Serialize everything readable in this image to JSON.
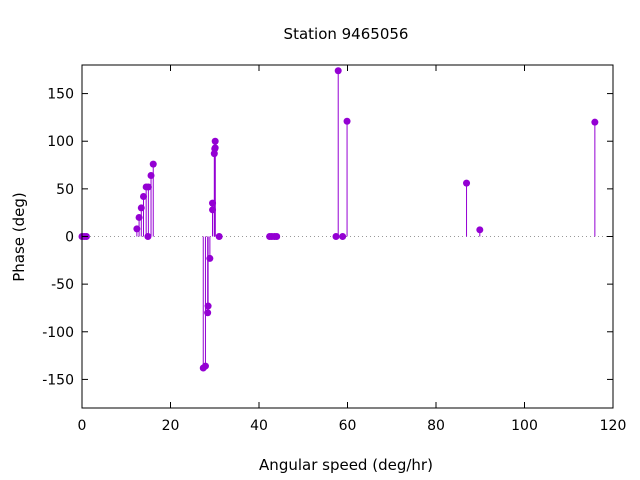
{
  "chart_data": {
    "type": "scatter",
    "style": "impulses-with-points",
    "title": "Station 9465056",
    "xlabel": "Angular speed (deg/hr)",
    "ylabel": "Phase (deg)",
    "xlim": [
      0,
      120
    ],
    "ylim": [
      -180,
      180
    ],
    "xticks": [
      0,
      20,
      40,
      60,
      80,
      100,
      120
    ],
    "yticks": [
      -150,
      -100,
      -50,
      0,
      50,
      100,
      150
    ],
    "grid": false,
    "zero_line": "dotted",
    "color": "#9400d3",
    "series": [
      {
        "points": [
          [
            0.0,
            0
          ],
          [
            0.5,
            0
          ],
          [
            1.0,
            0
          ],
          [
            12.4,
            8
          ],
          [
            12.9,
            20
          ],
          [
            13.4,
            30
          ],
          [
            13.9,
            42
          ],
          [
            14.5,
            52
          ],
          [
            14.9,
            0
          ],
          [
            15.0,
            52
          ],
          [
            15.6,
            64
          ],
          [
            16.1,
            76
          ],
          [
            27.4,
            -138
          ],
          [
            27.9,
            -136
          ],
          [
            28.4,
            -80
          ],
          [
            28.5,
            -73
          ],
          [
            28.9,
            -23
          ],
          [
            29.5,
            28
          ],
          [
            29.5,
            35
          ],
          [
            29.9,
            87
          ],
          [
            30.0,
            92
          ],
          [
            30.1,
            93
          ],
          [
            30.1,
            100
          ],
          [
            31.0,
            0
          ],
          [
            42.4,
            0
          ],
          [
            42.9,
            0
          ],
          [
            43.5,
            0
          ],
          [
            44.0,
            0
          ],
          [
            57.4,
            0
          ],
          [
            57.9,
            174
          ],
          [
            58.9,
            0
          ],
          [
            59.9,
            121
          ],
          [
            86.9,
            56
          ],
          [
            89.9,
            7
          ],
          [
            115.9,
            120
          ]
        ]
      }
    ]
  }
}
